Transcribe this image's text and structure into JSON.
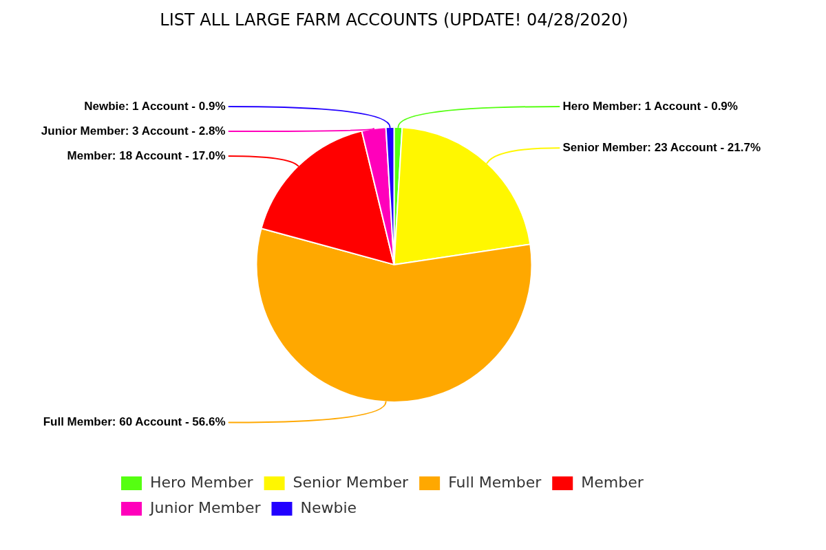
{
  "chart_data": {
    "type": "pie",
    "title": "LIST ALL LARGE FARM ACCOUNTS (UPDATE! 04/28/2020)",
    "categories": [
      "Hero Member",
      "Senior Member",
      "Full Member",
      "Member",
      "Junior Member",
      "Newbie"
    ],
    "values": [
      1,
      23,
      60,
      18,
      3,
      1
    ],
    "colors": [
      "#55ff11",
      "#fff700",
      "#ffa800",
      "#ff0000",
      "#ff00bb",
      "#2200ff"
    ],
    "value_labels": [
      "Hero Member: 1 Account - 0.9%",
      "Senior Member: 23 Account - 21.7%",
      "Full Member: 60 Account - 56.6%",
      "Member: 18 Account - 17.0%",
      "Junior Member: 3 Account - 2.8%",
      "Newbie: 1 Account - 0.9%"
    ],
    "legend": "bottom"
  }
}
